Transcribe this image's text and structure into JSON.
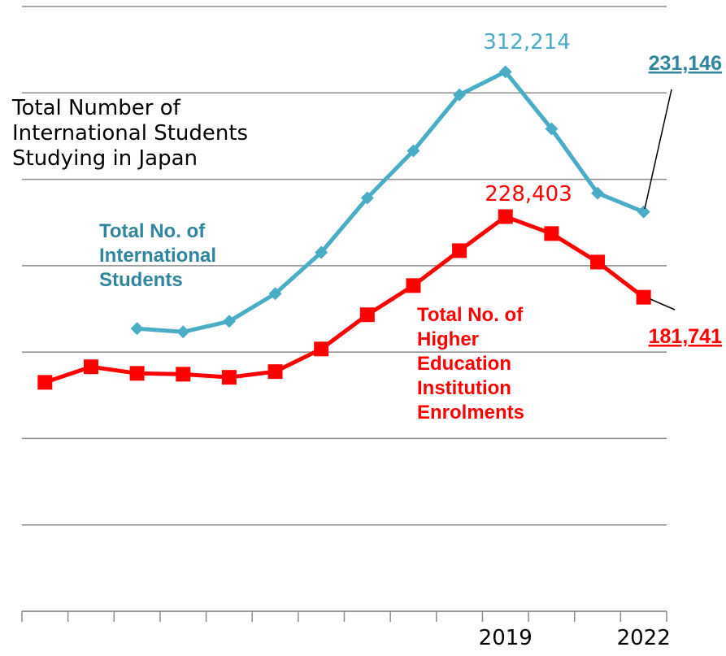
{
  "chart_data": {
    "type": "line",
    "title": [
      "Total Number of",
      "International Students",
      "Studying in Japan"
    ],
    "categories": [
      null,
      null,
      null,
      null,
      null,
      null,
      null,
      null,
      null,
      null,
      "2019",
      null,
      null,
      "2022"
    ],
    "series": [
      {
        "name": "Total No. of International Students",
        "color": "#4bacc6",
        "values": [
          null,
          null,
          163600,
          161700,
          167800,
          183800,
          207700,
          239200,
          266500,
          298900,
          312214,
          279200,
          242000,
          231146
        ],
        "value_labels": [
          null,
          null,
          null,
          null,
          null,
          null,
          null,
          null,
          null,
          null,
          "312,214",
          null,
          null,
          "231,146"
        ]
      },
      {
        "name": "Total No. of Higher Education Institution Enrolments",
        "color": "#ff0000",
        "values": [
          132500,
          141500,
          137700,
          137200,
          135400,
          138700,
          151800,
          171600,
          188500,
          208700,
          228403,
          218600,
          202100,
          181741
        ],
        "value_labels": [
          null,
          null,
          null,
          null,
          null,
          null,
          null,
          null,
          null,
          null,
          "228,403",
          null,
          null,
          "181,741"
        ]
      }
    ],
    "ylim": [
      0,
      350000
    ],
    "yticks": [
      0,
      50000,
      100000,
      150000,
      200000,
      250000,
      300000,
      350000
    ],
    "grid": true
  }
}
